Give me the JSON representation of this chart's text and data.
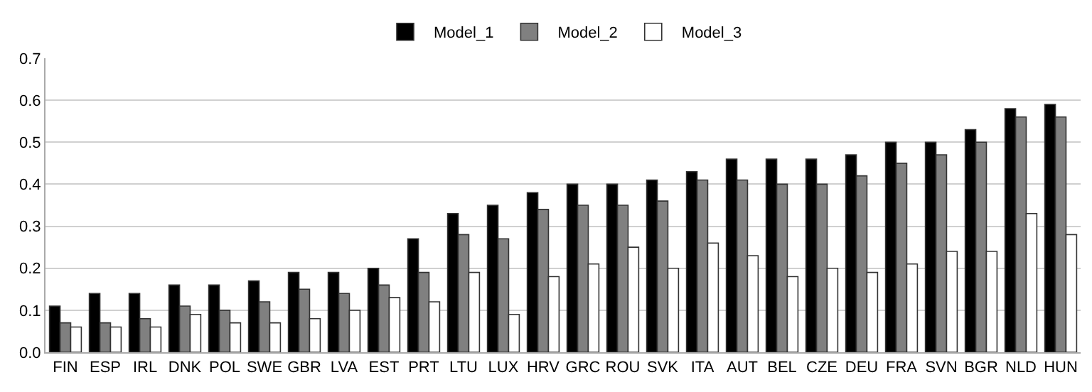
{
  "chart_data": {
    "type": "bar",
    "categories": [
      "FIN",
      "ESP",
      "IRL",
      "DNK",
      "POL",
      "SWE",
      "GBR",
      "LVA",
      "EST",
      "PRT",
      "LTU",
      "LUX",
      "HRV",
      "GRC",
      "ROU",
      "SVK",
      "ITA",
      "AUT",
      "BEL",
      "CZE",
      "DEU",
      "FRA",
      "SVN",
      "BGR",
      "NLD",
      "HUN"
    ],
    "series": [
      {
        "name": "Model_1",
        "color": "#000000",
        "values": [
          0.11,
          0.14,
          0.14,
          0.16,
          0.16,
          0.17,
          0.19,
          0.19,
          0.2,
          0.27,
          0.33,
          0.35,
          0.38,
          0.4,
          0.4,
          0.41,
          0.43,
          0.46,
          0.46,
          0.46,
          0.47,
          0.5,
          0.5,
          0.53,
          0.58,
          0.59
        ]
      },
      {
        "name": "Model_2",
        "color": "#808080",
        "values": [
          0.07,
          0.07,
          0.08,
          0.11,
          0.1,
          0.12,
          0.15,
          0.14,
          0.16,
          0.19,
          0.28,
          0.27,
          0.34,
          0.35,
          0.35,
          0.36,
          0.41,
          0.41,
          0.4,
          0.4,
          0.42,
          0.45,
          0.47,
          0.5,
          0.56,
          0.56
        ]
      },
      {
        "name": "Model_3",
        "color": "#ffffff",
        "values": [
          0.06,
          0.06,
          0.06,
          0.09,
          0.07,
          0.07,
          0.08,
          0.1,
          0.13,
          0.12,
          0.19,
          0.09,
          0.18,
          0.21,
          0.25,
          0.2,
          0.26,
          0.23,
          0.18,
          0.2,
          0.19,
          0.21,
          0.24,
          0.24,
          0.33,
          0.28
        ]
      }
    ],
    "ylim": [
      0,
      0.7
    ],
    "yticks": [
      {
        "value": 0,
        "label": "0.0"
      },
      {
        "value": 0.1,
        "label": "0.1"
      },
      {
        "value": 0.2,
        "label": "0.2"
      },
      {
        "value": 0.3,
        "label": "0.3"
      },
      {
        "value": 0.4,
        "label": "0.4"
      },
      {
        "value": 0.5,
        "label": "0.5"
      },
      {
        "value": 0.6,
        "label": "0.6"
      },
      {
        "value": 0.7,
        "label": "0.7"
      }
    ],
    "grid": "y",
    "legend": "top"
  }
}
